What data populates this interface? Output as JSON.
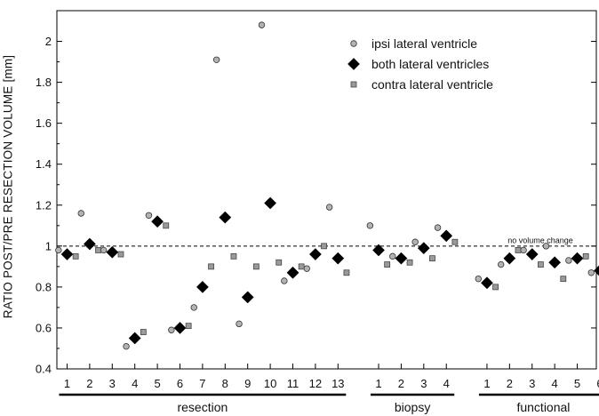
{
  "chart_data": {
    "type": "scatter",
    "ylabel": "RATIO POST/PRE RESECTION VOLUME [mm]",
    "ylim": [
      0.4,
      2.15
    ],
    "yticks": [
      0.4,
      0.6,
      0.8,
      1,
      1.2,
      1.4,
      1.6,
      1.8,
      2
    ],
    "ytick_labels": [
      "0.4",
      "0.6",
      "0.8",
      "1",
      "1.2",
      "1.4",
      "1.6",
      "1.8",
      "2"
    ],
    "reference_line": {
      "y": 1,
      "label": "no volume change",
      "style": "dashed"
    },
    "legend": {
      "position": "top-right"
    },
    "groups": [
      {
        "label": "resection",
        "categories": [
          "1",
          "2",
          "3",
          "4",
          "5",
          "6",
          "7",
          "8",
          "9",
          "10",
          "11",
          "12",
          "13"
        ]
      },
      {
        "label": "biopsy",
        "categories": [
          "1",
          "2",
          "3",
          "4"
        ]
      },
      {
        "label": "functional",
        "categories": [
          "1",
          "2",
          "3",
          "4",
          "5",
          "6"
        ]
      }
    ],
    "series": [
      {
        "name": "ipsi lateral ventricle",
        "marker": "circle",
        "color": "#b3b3b3",
        "values": [
          0.98,
          1.16,
          0.98,
          0.51,
          1.15,
          0.59,
          0.7,
          1.91,
          0.62,
          2.08,
          0.83,
          0.89,
          1.19,
          1.1,
          0.95,
          1.02,
          1.09,
          0.84,
          0.91,
          0.98,
          1.0,
          0.93,
          0.87
        ]
      },
      {
        "name": "both lateral ventricles",
        "marker": "diamond",
        "color": "#000000",
        "values": [
          0.96,
          1.01,
          0.97,
          0.55,
          1.12,
          0.6,
          0.8,
          1.14,
          0.75,
          1.21,
          0.87,
          0.96,
          0.94,
          0.98,
          0.94,
          0.99,
          1.05,
          0.82,
          0.94,
          0.96,
          0.92,
          0.94,
          0.88
        ]
      },
      {
        "name": "contra lateral ventricle",
        "marker": "square",
        "color": "#9a9a9a",
        "values": [
          0.95,
          0.98,
          0.96,
          0.58,
          1.1,
          0.61,
          0.9,
          0.95,
          0.9,
          0.92,
          0.9,
          1.0,
          0.87,
          0.91,
          0.92,
          0.94,
          1.02,
          0.8,
          0.98,
          0.91,
          0.84,
          0.95,
          0.88
        ]
      }
    ]
  }
}
